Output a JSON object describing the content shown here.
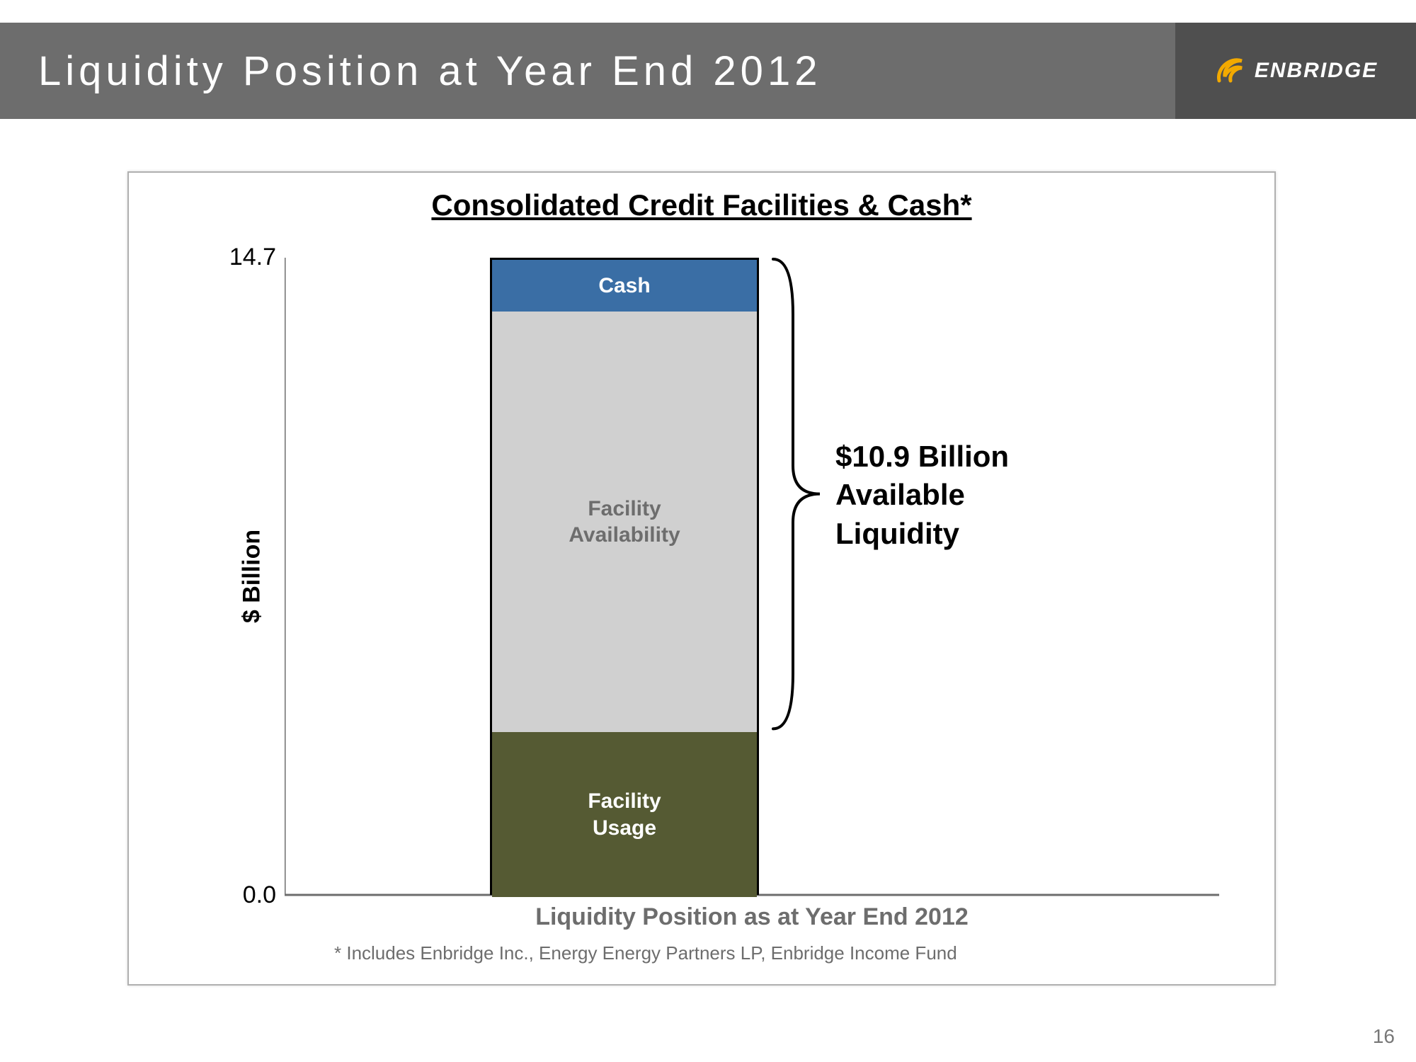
{
  "header": {
    "title": "Liquidity Position at Year End 2012",
    "band_color": "#6d6d6d",
    "accent_color": "#4f4f4f",
    "logo": {
      "text": "ENBRIDGE",
      "swirl_color": "#f2a900"
    }
  },
  "chart": {
    "type": "stacked-bar",
    "title": "Consolidated Credit Facilities & Cash*",
    "y_axis_label": "$ Billion",
    "ylim_min": 0.0,
    "ylim_max": 14.7,
    "tick_top_label": "14.7",
    "tick_bottom_label": "0.0",
    "axis_color": "#6d6d6d",
    "border_color": "#b0b0b0",
    "bar_border_color": "#000000",
    "x_category_label": "Liquidity Position as at Year End 2012",
    "segments": {
      "cash": {
        "label": "Cash",
        "value": 1.2,
        "fill": "#3a6ea5",
        "text_color": "#ffffff"
      },
      "facility_availability": {
        "label": "Facility\nAvailability",
        "value": 9.7,
        "fill": "#d0d0d0",
        "text_color": "#6d6d6d"
      },
      "facility_usage": {
        "label": "Facility\nUsage",
        "value": 3.8,
        "fill": "#555a33",
        "text_color": "#ffffff"
      }
    },
    "callout": {
      "text": "$10.9 Billion\nAvailable\nLiquidity",
      "brace_color": "#000000"
    },
    "footnote": "* Includes Enbridge Inc., Energy Energy Partners LP, Enbridge Income Fund"
  },
  "page_number": "16"
}
